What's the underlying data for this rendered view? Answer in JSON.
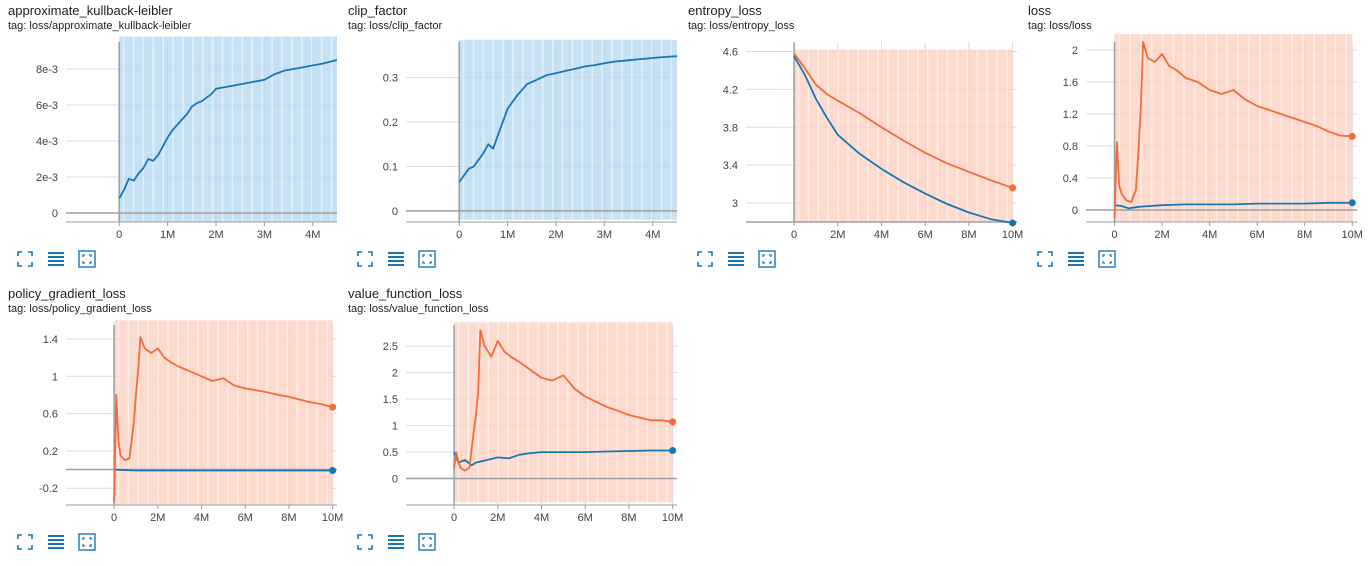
{
  "colors": {
    "blue": "#1976b5",
    "orange": "#f26b3a",
    "blue_band": "#b6daf0",
    "orange_band": "#fcd1c2",
    "grid": "#dcdcdc",
    "axis": "#9e9e9e"
  },
  "cards": [
    {
      "title": "approximate_kullback-leibler",
      "tag": "tag: loss/approximate_kullback-leibler",
      "tools": [
        "expand-icon",
        "data-table-icon",
        "fit-domain-icon"
      ]
    },
    {
      "title": "clip_factor",
      "tag": "tag: loss/clip_factor",
      "tools": [
        "expand-icon",
        "data-table-icon",
        "fit-domain-icon"
      ]
    },
    {
      "title": "entropy_loss",
      "tag": "tag: loss/entropy_loss",
      "tools": [
        "expand-icon",
        "data-table-icon",
        "fit-domain-icon"
      ]
    },
    {
      "title": "loss",
      "tag": "tag: loss/loss",
      "tools": [
        "expand-icon",
        "data-table-icon",
        "fit-domain-icon"
      ]
    },
    {
      "title": "policy_gradient_loss",
      "tag": "tag: loss/policy_gradient_loss",
      "tools": [
        "expand-icon",
        "data-table-icon",
        "fit-domain-icon"
      ]
    },
    {
      "title": "value_function_loss",
      "tag": "tag: loss/value_function_loss",
      "tools": [
        "expand-icon",
        "data-table-icon",
        "fit-domain-icon"
      ]
    }
  ],
  "chart_data": [
    {
      "type": "line",
      "xlim": [
        -1.1,
        4.5
      ],
      "ylim": [
        -0.0005,
        0.0095
      ],
      "xticks": [
        {
          "v": 0,
          "label": "0"
        },
        {
          "v": 1,
          "label": "1M"
        },
        {
          "v": 2,
          "label": "2M"
        },
        {
          "v": 3,
          "label": "3M"
        },
        {
          "v": 4,
          "label": "4M"
        }
      ],
      "yticks": [
        {
          "v": 0,
          "label": "0"
        },
        {
          "v": 0.002,
          "label": "2e-3"
        },
        {
          "v": 0.004,
          "label": "4e-3"
        },
        {
          "v": 0.006,
          "label": "6e-3"
        },
        {
          "v": 0.008,
          "label": "8e-3"
        }
      ],
      "band": {
        "color": "blue",
        "low": -0.0005,
        "high": 0.0098,
        "from": 0,
        "to": 4.5
      },
      "series": [
        {
          "color": "blue",
          "endpoint": false,
          "x": [
            0,
            0.1,
            0.2,
            0.3,
            0.4,
            0.5,
            0.6,
            0.7,
            0.8,
            0.9,
            1.0,
            1.1,
            1.2,
            1.3,
            1.4,
            1.5,
            1.6,
            1.7,
            1.8,
            1.9,
            2.0,
            2.2,
            2.4,
            2.6,
            2.8,
            3.0,
            3.2,
            3.4,
            3.6,
            3.8,
            4.0,
            4.2,
            4.5
          ],
          "y": [
            0.0008,
            0.0013,
            0.0019,
            0.0018,
            0.0022,
            0.0025,
            0.003,
            0.0029,
            0.0032,
            0.0037,
            0.0042,
            0.0046,
            0.0049,
            0.0052,
            0.0055,
            0.0059,
            0.0061,
            0.0062,
            0.0064,
            0.0066,
            0.0069,
            0.007,
            0.0071,
            0.0072,
            0.0073,
            0.0074,
            0.0077,
            0.0079,
            0.008,
            0.0081,
            0.0082,
            0.0083,
            0.0085
          ]
        }
      ]
    },
    {
      "type": "line",
      "xlim": [
        -1.1,
        4.5
      ],
      "ylim": [
        -0.025,
        0.38
      ],
      "xticks": [
        {
          "v": 0,
          "label": "0"
        },
        {
          "v": 1,
          "label": "1M"
        },
        {
          "v": 2,
          "label": "2M"
        },
        {
          "v": 3,
          "label": "3M"
        },
        {
          "v": 4,
          "label": "4M"
        }
      ],
      "yticks": [
        {
          "v": 0,
          "label": "0"
        },
        {
          "v": 0.1,
          "label": "0.1"
        },
        {
          "v": 0.2,
          "label": "0.2"
        },
        {
          "v": 0.3,
          "label": "0.3"
        }
      ],
      "band": {
        "color": "blue",
        "low": -0.02,
        "high": 0.385,
        "from": 0,
        "to": 4.5
      },
      "series": [
        {
          "color": "blue",
          "endpoint": false,
          "x": [
            0,
            0.1,
            0.2,
            0.3,
            0.4,
            0.5,
            0.6,
            0.7,
            0.8,
            0.9,
            1.0,
            1.2,
            1.4,
            1.6,
            1.8,
            2.0,
            2.2,
            2.4,
            2.6,
            2.8,
            3.0,
            3.2,
            3.4,
            3.6,
            3.8,
            4.0,
            4.2,
            4.5
          ],
          "y": [
            0.065,
            0.08,
            0.095,
            0.1,
            0.115,
            0.13,
            0.15,
            0.14,
            0.17,
            0.2,
            0.23,
            0.26,
            0.285,
            0.295,
            0.305,
            0.31,
            0.315,
            0.32,
            0.325,
            0.328,
            0.332,
            0.336,
            0.338,
            0.34,
            0.342,
            0.344,
            0.346,
            0.348
          ]
        }
      ]
    },
    {
      "type": "line",
      "xlim": [
        -2.2,
        10.2
      ],
      "ylim": [
        2.8,
        4.7
      ],
      "xticks": [
        {
          "v": 0,
          "label": "0"
        },
        {
          "v": 2,
          "label": "2M"
        },
        {
          "v": 4,
          "label": "4M"
        },
        {
          "v": 6,
          "label": "6M"
        },
        {
          "v": 8,
          "label": "8M"
        },
        {
          "v": 10,
          "label": "10M"
        }
      ],
      "yticks": [
        {
          "v": 3,
          "label": "3"
        },
        {
          "v": 3.4,
          "label": "3.4"
        },
        {
          "v": 3.8,
          "label": "3.8"
        },
        {
          "v": 4.2,
          "label": "4.2"
        },
        {
          "v": 4.6,
          "label": "4.6"
        }
      ],
      "band": {
        "color": "orange",
        "low": 2.8,
        "high": 4.62,
        "from": 0,
        "to": 10
      },
      "series": [
        {
          "color": "blue",
          "endpoint": true,
          "x": [
            0,
            0.5,
            1,
            1.5,
            2,
            3,
            4,
            5,
            6,
            7,
            8,
            9,
            10
          ],
          "y": [
            4.55,
            4.35,
            4.1,
            3.9,
            3.72,
            3.52,
            3.36,
            3.22,
            3.1,
            2.99,
            2.9,
            2.83,
            2.79
          ]
        },
        {
          "color": "orange",
          "endpoint": true,
          "x": [
            0,
            0.5,
            1,
            1.5,
            2,
            3,
            4,
            5,
            6,
            7,
            8,
            9,
            10
          ],
          "y": [
            4.58,
            4.42,
            4.25,
            4.15,
            4.08,
            3.95,
            3.8,
            3.66,
            3.53,
            3.42,
            3.33,
            3.24,
            3.16
          ]
        }
      ]
    },
    {
      "type": "line",
      "xlim": [
        -1.2,
        10.2
      ],
      "ylim": [
        -0.15,
        2.1
      ],
      "xticks": [
        {
          "v": 0,
          "label": "0"
        },
        {
          "v": 2,
          "label": "2M"
        },
        {
          "v": 4,
          "label": "4M"
        },
        {
          "v": 6,
          "label": "6M"
        },
        {
          "v": 8,
          "label": "8M"
        },
        {
          "v": 10,
          "label": "10M"
        }
      ],
      "yticks": [
        {
          "v": 0,
          "label": "0"
        },
        {
          "v": 0.4,
          "label": "0.4"
        },
        {
          "v": 0.8,
          "label": "0.8"
        },
        {
          "v": 1.2,
          "label": "1.2"
        },
        {
          "v": 1.6,
          "label": "1.6"
        },
        {
          "v": 2,
          "label": "2"
        }
      ],
      "band": {
        "color": "orange",
        "low": -0.15,
        "high": 2.2,
        "from": 0,
        "to": 10
      },
      "series": [
        {
          "color": "blue",
          "endpoint": true,
          "x": [
            0,
            0.3,
            0.6,
            1,
            2,
            3,
            4,
            5,
            6,
            7,
            8,
            9,
            10
          ],
          "y": [
            0.06,
            0.05,
            0.02,
            0.04,
            0.06,
            0.07,
            0.07,
            0.07,
            0.08,
            0.08,
            0.08,
            0.09,
            0.09
          ]
        },
        {
          "color": "orange",
          "endpoint": true,
          "x": [
            0,
            0.1,
            0.2,
            0.3,
            0.5,
            0.7,
            0.9,
            1.0,
            1.1,
            1.2,
            1.4,
            1.7,
            2.0,
            2.3,
            2.6,
            3.0,
            3.5,
            4.0,
            4.5,
            5.0,
            5.5,
            6.0,
            6.5,
            7.0,
            7.5,
            8.0,
            8.5,
            9.0,
            9.5,
            10.0
          ],
          "y": [
            -0.1,
            0.85,
            0.3,
            0.2,
            0.12,
            0.1,
            0.25,
            0.7,
            1.25,
            2.1,
            1.9,
            1.85,
            1.95,
            1.8,
            1.75,
            1.65,
            1.6,
            1.5,
            1.45,
            1.5,
            1.38,
            1.3,
            1.25,
            1.2,
            1.15,
            1.1,
            1.05,
            0.98,
            0.93,
            0.92
          ]
        }
      ]
    },
    {
      "type": "line",
      "xlim": [
        -2.2,
        10.2
      ],
      "ylim": [
        -0.38,
        1.55
      ],
      "xticks": [
        {
          "v": 0,
          "label": "0"
        },
        {
          "v": 2,
          "label": "2M"
        },
        {
          "v": 4,
          "label": "4M"
        },
        {
          "v": 6,
          "label": "6M"
        },
        {
          "v": 8,
          "label": "8M"
        },
        {
          "v": 10,
          "label": "10M"
        }
      ],
      "yticks": [
        {
          "v": -0.2,
          "label": "-0.2"
        },
        {
          "v": 0.2,
          "label": "0.2"
        },
        {
          "v": 0.6,
          "label": "0.6"
        },
        {
          "v": 1,
          "label": "1"
        },
        {
          "v": 1.4,
          "label": "1.4"
        }
      ],
      "band": {
        "color": "orange",
        "low": -0.38,
        "high": 1.6,
        "from": 0,
        "to": 10
      },
      "series": [
        {
          "color": "blue",
          "endpoint": true,
          "x": [
            0,
            1,
            2,
            3,
            4,
            5,
            6,
            7,
            8,
            9,
            10
          ],
          "y": [
            0.0,
            -0.01,
            -0.01,
            -0.01,
            -0.01,
            -0.01,
            -0.01,
            -0.01,
            -0.01,
            -0.01,
            -0.01
          ]
        },
        {
          "color": "orange",
          "endpoint": true,
          "x": [
            0,
            0.1,
            0.2,
            0.3,
            0.5,
            0.7,
            0.9,
            1.0,
            1.1,
            1.2,
            1.4,
            1.7,
            2.0,
            2.3,
            2.6,
            3.0,
            3.5,
            4.0,
            4.5,
            5.0,
            5.5,
            6.0,
            6.5,
            7.0,
            7.5,
            8.0,
            8.5,
            9.0,
            9.5,
            10.0
          ],
          "y": [
            -0.35,
            0.8,
            0.3,
            0.15,
            0.1,
            0.12,
            0.5,
            0.8,
            1.05,
            1.42,
            1.3,
            1.25,
            1.3,
            1.2,
            1.15,
            1.1,
            1.05,
            1.0,
            0.95,
            0.98,
            0.9,
            0.87,
            0.85,
            0.83,
            0.8,
            0.78,
            0.75,
            0.72,
            0.7,
            0.67
          ]
        }
      ]
    },
    {
      "type": "line",
      "xlim": [
        -2.2,
        10.2
      ],
      "ylim": [
        -0.5,
        2.9
      ],
      "xticks": [
        {
          "v": 0,
          "label": "0"
        },
        {
          "v": 2,
          "label": "2M"
        },
        {
          "v": 4,
          "label": "4M"
        },
        {
          "v": 6,
          "label": "6M"
        },
        {
          "v": 8,
          "label": "8M"
        },
        {
          "v": 10,
          "label": "10M"
        }
      ],
      "yticks": [
        {
          "v": 0,
          "label": "0"
        },
        {
          "v": 0.5,
          "label": "0.5"
        },
        {
          "v": 1,
          "label": "1"
        },
        {
          "v": 1.5,
          "label": "1.5"
        },
        {
          "v": 2,
          "label": "2"
        },
        {
          "v": 2.5,
          "label": "2.5"
        }
      ],
      "band": {
        "color": "orange",
        "low": -0.45,
        "high": 2.95,
        "from": 0,
        "to": 10
      },
      "series": [
        {
          "color": "blue",
          "endpoint": true,
          "x": [
            0,
            0.2,
            0.5,
            0.8,
            1,
            1.5,
            2,
            2.5,
            3,
            3.5,
            4,
            5,
            6,
            7,
            8,
            9,
            10
          ],
          "y": [
            0.5,
            0.3,
            0.35,
            0.25,
            0.3,
            0.35,
            0.4,
            0.38,
            0.45,
            0.48,
            0.5,
            0.5,
            0.5,
            0.51,
            0.52,
            0.53,
            0.53
          ]
        },
        {
          "color": "orange",
          "endpoint": true,
          "x": [
            0,
            0.1,
            0.2,
            0.3,
            0.5,
            0.7,
            0.9,
            1.0,
            1.1,
            1.2,
            1.4,
            1.7,
            2.0,
            2.3,
            2.6,
            3.0,
            3.5,
            4.0,
            4.5,
            5.0,
            5.5,
            6.0,
            6.5,
            7.0,
            7.5,
            8.0,
            8.5,
            9.0,
            9.5,
            10.0
          ],
          "y": [
            0.2,
            0.5,
            0.3,
            0.2,
            0.15,
            0.2,
            0.9,
            1.2,
            1.6,
            2.8,
            2.5,
            2.3,
            2.6,
            2.4,
            2.3,
            2.2,
            2.05,
            1.9,
            1.85,
            1.95,
            1.7,
            1.55,
            1.45,
            1.35,
            1.28,
            1.2,
            1.15,
            1.1,
            1.1,
            1.07
          ]
        }
      ]
    }
  ]
}
